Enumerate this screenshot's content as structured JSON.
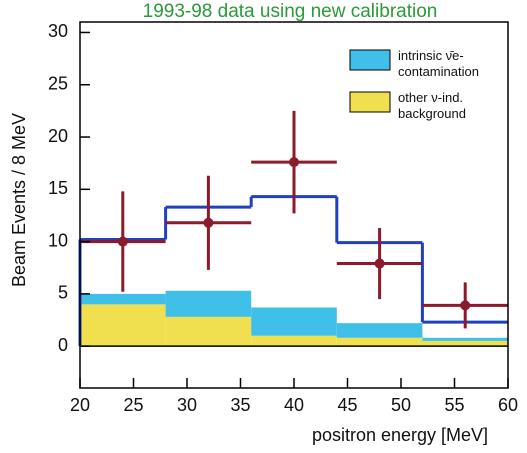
{
  "chart_data": {
    "type": "histogram",
    "title": "1993-98 data using new calibration",
    "title_color": "#2a9a3a",
    "x_label": "positron energy [MeV]",
    "y_label": "Beam Events / 8 MeV",
    "bins": [
      20,
      28,
      36,
      44,
      52,
      60
    ],
    "series": [
      {
        "name": "other ν-ind. background",
        "color": "#f0e050",
        "values": [
          4,
          2.8,
          1,
          0.8,
          0.5
        ]
      },
      {
        "name": "intrinsic ν̄e- contamination",
        "color": "#40c0e8",
        "values": [
          1,
          2.5,
          2.7,
          1.4,
          0.3
        ]
      }
    ],
    "line": {
      "color": "#2040c0",
      "values": [
        10.2,
        13.3,
        14.3,
        9.9,
        2.3
      ]
    },
    "points": {
      "color": "#8b1a2a",
      "x": [
        24,
        32,
        40,
        48,
        56
      ],
      "values": [
        10,
        11.8,
        17.6,
        7.9,
        3.9
      ],
      "errors": [
        4.8,
        4.5,
        4.9,
        3.4,
        2.2
      ]
    },
    "xlim": [
      20,
      60
    ],
    "xticks": [
      20,
      25,
      30,
      35,
      40,
      45,
      50,
      55,
      60
    ],
    "ylim": [
      -4,
      31
    ],
    "yticks": [
      0,
      5,
      10,
      15,
      20,
      25,
      30
    ]
  }
}
